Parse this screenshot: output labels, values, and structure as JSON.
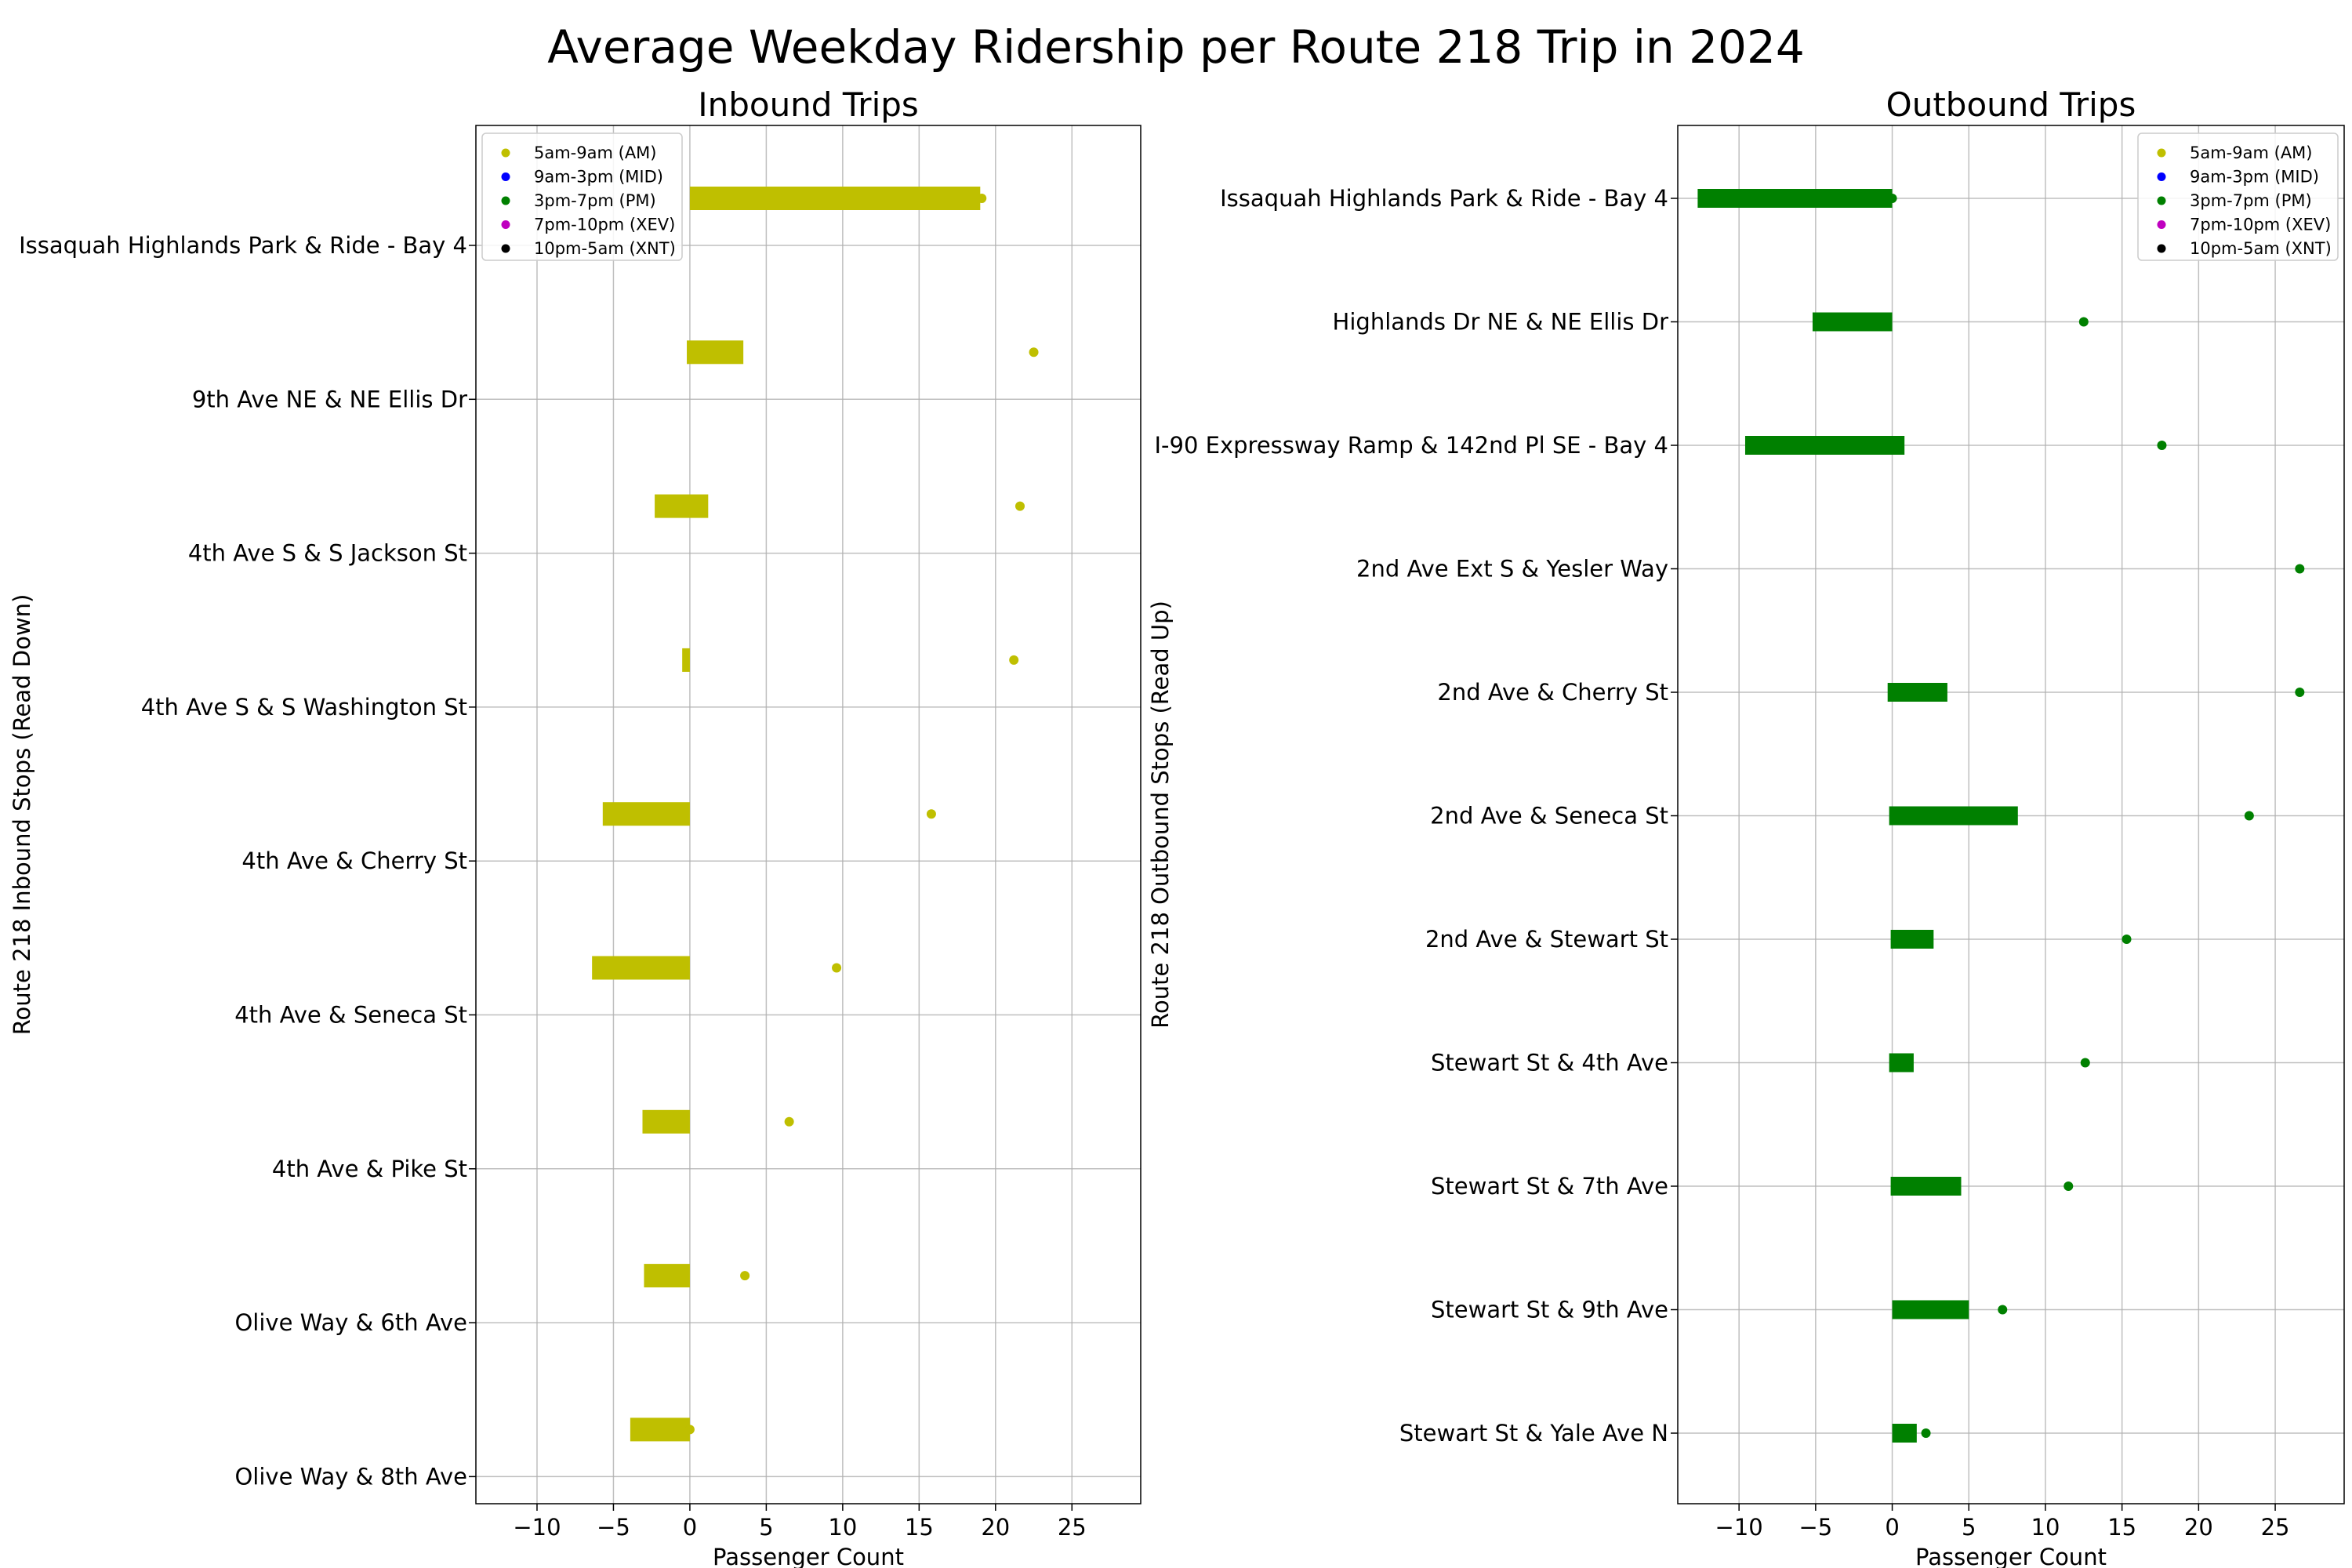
{
  "title": "Average Weekday Ridership per Route 218 Trip in 2024",
  "legend": [
    {
      "label": "5am-9am (AM)",
      "color": "#bfbf00"
    },
    {
      "label": "9am-3pm (MID)",
      "color": "#0000ff"
    },
    {
      "label": "3pm-7pm (PM)",
      "color": "#008000"
    },
    {
      "label": "7pm-10pm (XEV)",
      "color": "#bf00bf"
    },
    {
      "label": "10pm-5am (XNT)",
      "color": "#000000"
    }
  ],
  "chart_data": [
    {
      "type": "bar",
      "orientation": "horizontal",
      "title": "Inbound Trips",
      "xlabel": "Passenger Count",
      "ylabel": "Route 218 Inbound Stops (Read Down)",
      "xlim": [
        -14,
        29.5
      ],
      "xticks": [
        -10,
        -5,
        0,
        5,
        10,
        15,
        20,
        25
      ],
      "xtick_labels": [
        "−10",
        "−5",
        "0",
        "5",
        "10",
        "15",
        "20",
        "25"
      ],
      "grid": true,
      "legend_position": "upper-left",
      "color": "#bfbf00",
      "series_period": "5am-9am (AM)",
      "categories": [
        "Issaquah Highlands Park & Ride - Bay 4",
        "9th Ave NE & NE Ellis Dr",
        "4th Ave S & S Jackson St",
        "4th Ave S & S Washington St",
        "4th Ave & Cherry St",
        "4th Ave & Seneca St",
        "4th Ave & Pike St",
        "Olive Way & 6th Ave",
        "Olive Way & 8th Ave"
      ],
      "bar_start": [
        0,
        -0.2,
        -2.3,
        -0.5,
        -5.7,
        -6.4,
        -3.1,
        -3.0,
        -3.9
      ],
      "bar_end": [
        19.0,
        3.5,
        1.2,
        0,
        0,
        0,
        0,
        0,
        0
      ],
      "point_values": [
        19.1,
        22.5,
        21.6,
        21.2,
        15.8,
        9.6,
        6.5,
        3.6,
        0
      ]
    },
    {
      "type": "bar",
      "orientation": "horizontal",
      "title": "Outbound Trips",
      "xlabel": "Passenger Count",
      "ylabel": "Route 218 Outbound Stops (Read Up)",
      "xlim": [
        -14,
        29.5
      ],
      "xticks": [
        -10,
        -5,
        0,
        5,
        10,
        15,
        20,
        25
      ],
      "xtick_labels": [
        "−10",
        "−5",
        "0",
        "5",
        "10",
        "15",
        "20",
        "25"
      ],
      "grid": true,
      "legend_position": "upper-right",
      "color": "#008000",
      "series_period": "3pm-7pm (PM)",
      "categories": [
        "Issaquah Highlands Park & Ride - Bay 4",
        "Highlands Dr NE & NE Ellis Dr",
        "I-90 Expressway Ramp & 142nd Pl SE - Bay 4",
        "2nd Ave Ext S & Yesler Way",
        "2nd Ave & Cherry St",
        "2nd Ave & Seneca St",
        "2nd Ave & Stewart St",
        "Stewart St & 4th Ave",
        "Stewart St & 7th Ave",
        "Stewart St & 9th Ave",
        "Stewart St & Yale Ave N"
      ],
      "bar_start": [
        -12.7,
        -5.2,
        -9.6,
        0,
        -0.3,
        -0.2,
        -0.1,
        -0.2,
        -0.1,
        0,
        0
      ],
      "bar_end": [
        0,
        0,
        0.8,
        0,
        3.6,
        8.2,
        2.7,
        1.4,
        4.5,
        5.0,
        1.6
      ],
      "point_values": [
        0,
        12.5,
        17.6,
        26.6,
        26.6,
        23.3,
        15.3,
        12.6,
        11.5,
        7.2,
        2.2
      ]
    }
  ]
}
